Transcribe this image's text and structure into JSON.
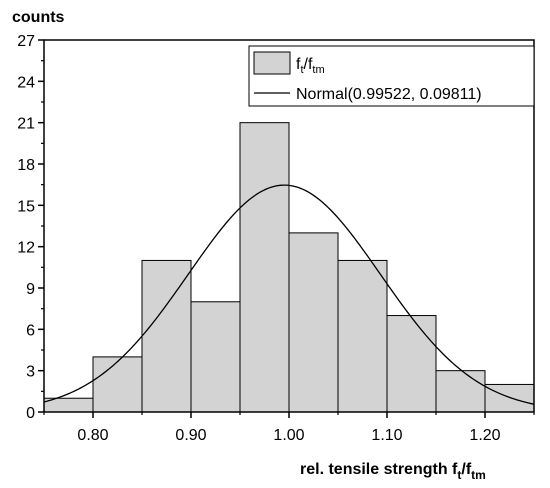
{
  "chart_data": {
    "type": "bar",
    "ylabel": "counts",
    "xlabel": "rel. tensile strength ",
    "xlabel_var": {
      "base": "f",
      "sub": "t",
      "sep": "/",
      "base2": "f",
      "sub2": "tm"
    },
    "xlim": [
      0.75,
      1.25
    ],
    "ylim": [
      0,
      27
    ],
    "x_ticks": [
      "0.80",
      "0.90",
      "1.00",
      "1.10",
      "1.20"
    ],
    "x_tick_values": [
      0.8,
      0.9,
      1.0,
      1.1,
      1.2
    ],
    "y_ticks": [
      "0",
      "3",
      "6",
      "9",
      "12",
      "15",
      "18",
      "21",
      "24",
      "27"
    ],
    "y_tick_values": [
      0,
      3,
      6,
      9,
      12,
      15,
      18,
      21,
      24,
      27
    ],
    "bins": [
      {
        "from": 0.75,
        "to": 0.8,
        "count": 1
      },
      {
        "from": 0.8,
        "to": 0.85,
        "count": 4
      },
      {
        "from": 0.85,
        "to": 0.9,
        "count": 11
      },
      {
        "from": 0.9,
        "to": 0.95,
        "count": 8
      },
      {
        "from": 0.95,
        "to": 1.0,
        "count": 21
      },
      {
        "from": 1.0,
        "to": 1.05,
        "count": 13
      },
      {
        "from": 1.05,
        "to": 1.1,
        "count": 11
      },
      {
        "from": 1.1,
        "to": 1.15,
        "count": 7
      },
      {
        "from": 1.15,
        "to": 1.2,
        "count": 3
      },
      {
        "from": 1.2,
        "to": 1.25,
        "count": 2
      }
    ],
    "fit": {
      "distribution": "Normal",
      "mean": 0.99522,
      "sd": 0.09811,
      "n": 81,
      "bin_width": 0.05
    },
    "legend": {
      "position": "top-right",
      "histogram": {
        "base": "f",
        "sub": "t",
        "sep": "/",
        "base2": "f",
        "sub2": "tm"
      },
      "curve": "Normal(0.99522, 0.09811)"
    },
    "colors": {
      "bar_fill": "#d3d3d3",
      "bar_stroke": "#000000",
      "curve": "#000000"
    },
    "grid": false
  }
}
